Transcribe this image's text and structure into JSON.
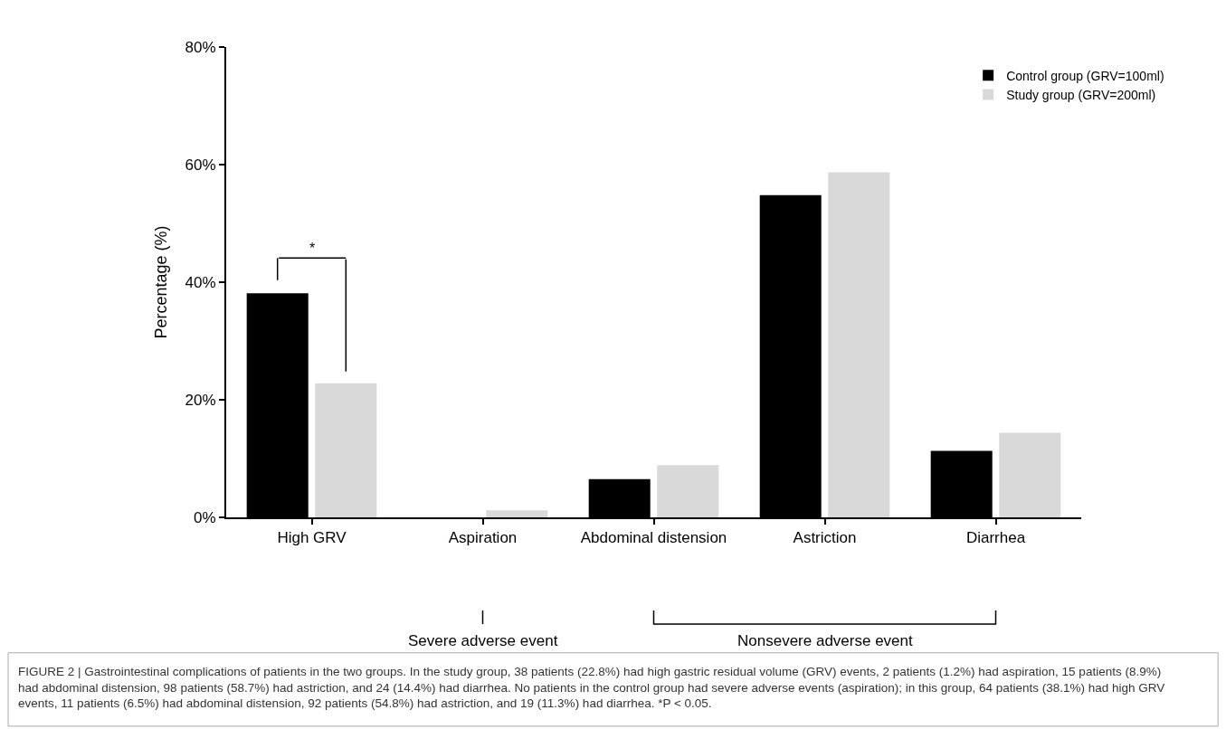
{
  "chart_data": {
    "type": "bar",
    "categories": [
      "High GRV",
      "Aspiration",
      "Abdominal distension",
      "Astriction",
      "Diarrhea"
    ],
    "series": [
      {
        "name": "Control group (GRV=100ml)",
        "color": "#000000",
        "values": [
          38.1,
          0,
          6.5,
          54.8,
          11.3
        ]
      },
      {
        "name": "Study group (GRV=200ml)",
        "color": "#d9d9d9",
        "values": [
          22.8,
          1.2,
          8.9,
          58.7,
          14.4
        ]
      }
    ],
    "ylabel": "Percentage (%)",
    "ylim": [
      0,
      80
    ],
    "yticks": [
      {
        "value": 0,
        "label": "0%"
      },
      {
        "value": 20,
        "label": "20%"
      },
      {
        "value": 40,
        "label": "40%"
      },
      {
        "value": 60,
        "label": "60%"
      },
      {
        "value": 80,
        "label": "80%"
      }
    ],
    "legend": "top right",
    "annotations": [
      "*",
      "Severe adverse event",
      "Nonsevere adverse event",
      "FIGURE 2 | Gastrointestinal complications of patients in the two groups. In the study group, 38 patients (22.8%) had high gastric residual volume (GRV) events, 2 patients (1.2%) had aspiration, 15 patients (8.9%) had abdominal distension, 98 patients (58.7%) had astriction, and 24 (14.4%) had diarrhea. No patients in the control group had severe adverse events (aspiration); in this group, 64 patients (38.1%) had high GRV events, 11 patients (6.5%) had abdominal distension, 92 patients (54.8%) had astriction, and 19 (11.3%) had diarrhea. *P < 0.05."
    ]
  }
}
